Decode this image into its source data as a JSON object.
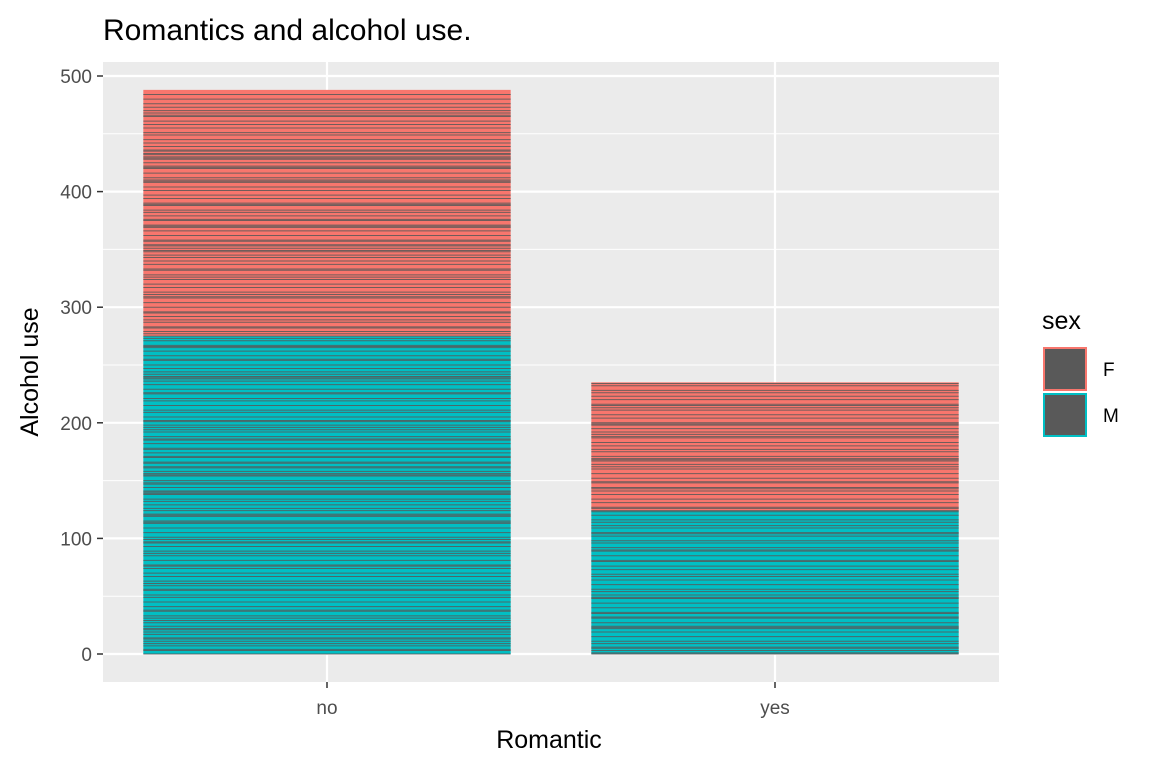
{
  "chart_data": {
    "type": "bar",
    "stacked": true,
    "title": "Romantics and alcohol use.",
    "xlabel": "Romantic",
    "ylabel": "Alcohol use",
    "categories": [
      "no",
      "yes"
    ],
    "ylim": [
      0,
      500
    ],
    "yticks": [
      0,
      100,
      200,
      300,
      400,
      500
    ],
    "grid": true,
    "legend": {
      "title": "sex",
      "position": "right"
    },
    "series": [
      {
        "name": "F",
        "color": "#F8766D",
        "values": [
          213,
          111
        ]
      },
      {
        "name": "M",
        "color": "#00BFC4",
        "values": [
          275,
          124
        ]
      }
    ],
    "totals": [
      488,
      235
    ],
    "segment_line_color": "#595959"
  }
}
